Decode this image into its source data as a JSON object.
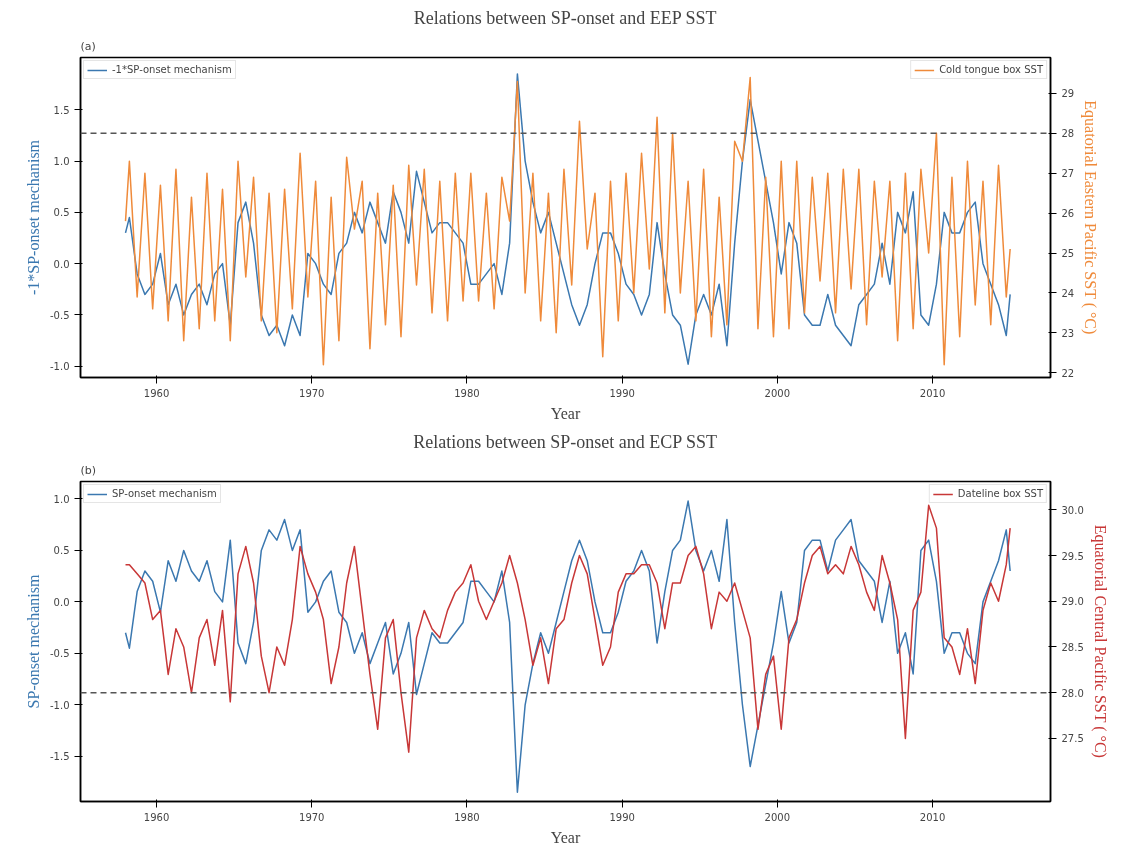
{
  "chart_data": [
    {
      "type": "line",
      "title": "Relations between SP-onset and EEP SST",
      "xlabel": "Year",
      "ylabel": "-1*SP-onset mechanism",
      "y2label": "Equatorial Eastern Pacific SST ( °C)",
      "annotations": [
        "(a)"
      ],
      "grid": false,
      "x": [
        1958.0,
        1958.25,
        1958.75,
        1959.25,
        1959.75,
        1960.25,
        1960.75,
        1961.25,
        1961.75,
        1962.25,
        1962.75,
        1963.25,
        1963.75,
        1964.25,
        1964.75,
        1965.25,
        1965.75,
        1966.25,
        1966.75,
        1967.25,
        1967.75,
        1968.25,
        1968.75,
        1969.25,
        1969.75,
        1970.25,
        1970.75,
        1971.25,
        1971.75,
        1972.25,
        1972.75,
        1973.25,
        1973.75,
        1974.25,
        1974.75,
        1975.25,
        1975.75,
        1976.25,
        1976.75,
        1977.25,
        1977.75,
        1978.25,
        1978.75,
        1979.25,
        1979.75,
        1980.25,
        1980.75,
        1981.25,
        1981.75,
        1982.25,
        1982.75,
        1983.25,
        1983.75,
        1984.25,
        1984.75,
        1985.25,
        1985.75,
        1986.25,
        1986.75,
        1987.25,
        1987.75,
        1988.25,
        1988.75,
        1989.25,
        1989.75,
        1990.25,
        1990.75,
        1991.25,
        1991.75,
        1992.25,
        1992.75,
        1993.25,
        1993.75,
        1994.25,
        1994.75,
        1995.25,
        1995.75,
        1996.25,
        1996.75,
        1997.25,
        1997.75,
        1998.25,
        1998.75,
        1999.25,
        1999.75,
        2000.25,
        2000.75,
        2001.25,
        2001.75,
        2002.25,
        2002.75,
        2003.25,
        2003.75,
        2004.25,
        2004.75,
        2005.25,
        2005.75,
        2006.25,
        2006.75,
        2007.25,
        2007.75,
        2008.25,
        2008.75,
        2009.25,
        2009.75,
        2010.25,
        2010.75,
        2011.25,
        2011.75,
        2012.25,
        2012.75,
        2013.25,
        2013.75,
        2014.25,
        2014.75,
        2015.0
      ],
      "xlim": [
        1955.1,
        2017.6
      ],
      "xticks": [
        1960,
        1970,
        1980,
        1990,
        2000,
        2010
      ],
      "ylim": [
        -1.11,
        2.01
      ],
      "yticks": [
        {
          "value": -1,
          "label": "-1.0"
        },
        -0.5,
        {
          "value": 0,
          "label": "0.0"
        },
        0.5,
        {
          "value": 1,
          "label": "1.0"
        },
        1.5
      ],
      "legend": "top",
      "y2lim": [
        21.88,
        29.9
      ],
      "y2ticks": [
        22,
        23,
        24,
        25,
        26,
        27,
        28,
        29
      ],
      "ref_lines": [
        {
          "axis": "y2",
          "value": 28,
          "color": "#555555",
          "line_style": "dashed"
        }
      ],
      "series": [
        {
          "name": "-1*SP-onset mechanism",
          "color": "#3b78b0",
          "values": [
            0.3,
            0.45,
            -0.1,
            -0.3,
            -0.2,
            0.1,
            -0.4,
            -0.2,
            -0.5,
            -0.3,
            -0.2,
            -0.4,
            -0.1,
            0.0,
            -0.6,
            0.4,
            0.6,
            0.2,
            -0.5,
            -0.7,
            -0.6,
            -0.8,
            -0.5,
            -0.7,
            0.1,
            0.0,
            -0.2,
            -0.3,
            0.1,
            0.2,
            0.5,
            0.3,
            0.6,
            0.4,
            0.2,
            0.7,
            0.5,
            0.2,
            0.9,
            0.6,
            0.3,
            0.4,
            0.4,
            0.3,
            0.2,
            -0.2,
            -0.2,
            -0.1,
            0.0,
            -0.3,
            0.2,
            1.85,
            1.0,
            0.6,
            0.3,
            0.5,
            0.2,
            -0.1,
            -0.4,
            -0.6,
            -0.4,
            0.0,
            0.3,
            0.3,
            0.1,
            -0.2,
            -0.3,
            -0.5,
            -0.3,
            0.4,
            -0.1,
            -0.5,
            -0.6,
            -0.98,
            -0.5,
            -0.3,
            -0.5,
            -0.2,
            -0.8,
            0.2,
            1.0,
            1.6,
            1.2,
            0.8,
            0.4,
            -0.1,
            0.4,
            0.2,
            -0.5,
            -0.6,
            -0.6,
            -0.3,
            -0.6,
            -0.7,
            -0.8,
            -0.4,
            -0.3,
            -0.2,
            0.2,
            -0.2,
            0.5,
            0.3,
            0.7,
            -0.5,
            -0.6,
            -0.2,
            0.5,
            0.3,
            0.3,
            0.5,
            0.6,
            0.0,
            -0.2,
            -0.4,
            -0.7,
            -0.3
          ]
        },
        {
          "name": "Cold tongue box SST",
          "color": "#ef8a3a",
          "axis": "y2",
          "values": [
            25.8,
            27.3,
            23.9,
            27.0,
            23.6,
            26.7,
            23.3,
            27.1,
            22.8,
            26.4,
            23.1,
            27.0,
            23.3,
            26.6,
            22.8,
            27.3,
            24.4,
            26.9,
            23.3,
            26.5,
            23.0,
            26.6,
            23.6,
            27.5,
            23.9,
            26.8,
            22.2,
            26.4,
            22.8,
            27.4,
            25.6,
            26.8,
            22.6,
            26.5,
            23.2,
            26.7,
            22.9,
            27.2,
            24.2,
            27.1,
            23.5,
            26.8,
            23.3,
            27.0,
            23.8,
            27.0,
            23.8,
            26.5,
            23.6,
            26.9,
            25.8,
            29.3,
            24.0,
            27.0,
            23.3,
            26.5,
            23.0,
            27.1,
            24.2,
            28.3,
            25.1,
            26.5,
            22.4,
            26.8,
            23.3,
            27.0,
            24.0,
            27.5,
            24.6,
            28.4,
            23.5,
            28.0,
            24.0,
            26.8,
            23.3,
            27.1,
            22.9,
            26.4,
            23.2,
            27.8,
            27.3,
            29.4,
            23.1,
            26.9,
            22.9,
            27.3,
            23.1,
            27.3,
            23.5,
            26.9,
            24.3,
            27.0,
            23.5,
            27.1,
            24.1,
            27.1,
            23.2,
            26.8,
            24.4,
            26.8,
            22.8,
            27.0,
            23.1,
            27.1,
            25.0,
            28.0,
            22.2,
            26.9,
            22.9,
            27.3,
            23.7,
            26.8,
            23.2,
            27.2,
            23.9,
            25.1
          ]
        }
      ]
    },
    {
      "type": "line",
      "title": "Relations between SP-onset and ECP SST",
      "xlabel": "Year",
      "ylabel": "SP-onset mechanism",
      "y2label": "Equatorial Central Pacific SST ( °C)",
      "annotations": [
        "(b)"
      ],
      "grid": false,
      "x": [
        1958.0,
        1958.25,
        1958.75,
        1959.25,
        1959.75,
        1960.25,
        1960.75,
        1961.25,
        1961.75,
        1962.25,
        1962.75,
        1963.25,
        1963.75,
        1964.25,
        1964.75,
        1965.25,
        1965.75,
        1966.25,
        1966.75,
        1967.25,
        1967.75,
        1968.25,
        1968.75,
        1969.25,
        1969.75,
        1970.25,
        1970.75,
        1971.25,
        1971.75,
        1972.25,
        1972.75,
        1973.25,
        1973.75,
        1974.25,
        1974.75,
        1975.25,
        1975.75,
        1976.25,
        1976.75,
        1977.25,
        1977.75,
        1978.25,
        1978.75,
        1979.25,
        1979.75,
        1980.25,
        1980.75,
        1981.25,
        1981.75,
        1982.25,
        1982.75,
        1983.25,
        1983.75,
        1984.25,
        1984.75,
        1985.25,
        1985.75,
        1986.25,
        1986.75,
        1987.25,
        1987.75,
        1988.25,
        1988.75,
        1989.25,
        1989.75,
        1990.25,
        1990.75,
        1991.25,
        1991.75,
        1992.25,
        1992.75,
        1993.25,
        1993.75,
        1994.25,
        1994.75,
        1995.25,
        1995.75,
        1996.25,
        1996.75,
        1997.25,
        1997.75,
        1998.25,
        1998.75,
        1999.25,
        1999.75,
        2000.25,
        2000.75,
        2001.25,
        2001.75,
        2002.25,
        2002.75,
        2003.25,
        2003.75,
        2004.25,
        2004.75,
        2005.25,
        2005.75,
        2006.25,
        2006.75,
        2007.25,
        2007.75,
        2008.25,
        2008.75,
        2009.25,
        2009.75,
        2010.25,
        2010.75,
        2011.25,
        2011.75,
        2012.25,
        2012.75,
        2013.25,
        2013.75,
        2014.25,
        2014.75,
        2015.0
      ],
      "xlim": [
        1955.1,
        2017.6
      ],
      "xticks": [
        1960,
        1970,
        1980,
        1990,
        2000,
        2010
      ],
      "ylim": [
        -1.94,
        1.17
      ],
      "yticks": [
        -1.5,
        {
          "value": -1,
          "label": "-1.0"
        },
        -0.5,
        {
          "value": 0,
          "label": "0.0"
        },
        0.5,
        {
          "value": 1,
          "label": "1.0"
        }
      ],
      "legend": "top",
      "y2lim": [
        26.81,
        30.31
      ],
      "y2ticks": [
        27.5,
        {
          "value": 28,
          "label": "28.0"
        },
        28.5,
        {
          "value": 29,
          "label": "29.0"
        },
        29.5,
        {
          "value": 30,
          "label": "30.0"
        }
      ],
      "ref_lines": [
        {
          "axis": "y2",
          "value": 28.0,
          "color": "#555555",
          "line_style": "dashed"
        }
      ],
      "series": [
        {
          "name": "SP-onset mechanism",
          "color": "#3b78b0",
          "values": [
            -0.3,
            -0.45,
            0.1,
            0.3,
            0.2,
            -0.1,
            0.4,
            0.2,
            0.5,
            0.3,
            0.2,
            0.4,
            0.1,
            0.0,
            0.6,
            -0.4,
            -0.6,
            -0.2,
            0.5,
            0.7,
            0.6,
            0.8,
            0.5,
            0.7,
            -0.1,
            0.0,
            0.2,
            0.3,
            -0.1,
            -0.2,
            -0.5,
            -0.3,
            -0.6,
            -0.4,
            -0.2,
            -0.7,
            -0.5,
            -0.2,
            -0.9,
            -0.6,
            -0.3,
            -0.4,
            -0.4,
            -0.3,
            -0.2,
            0.2,
            0.2,
            0.1,
            0.0,
            0.3,
            -0.2,
            -1.85,
            -1.0,
            -0.6,
            -0.3,
            -0.5,
            -0.2,
            0.1,
            0.4,
            0.6,
            0.4,
            0.0,
            -0.3,
            -0.3,
            -0.1,
            0.2,
            0.3,
            0.5,
            0.3,
            -0.4,
            0.1,
            0.5,
            0.6,
            0.98,
            0.5,
            0.3,
            0.5,
            0.2,
            0.8,
            -0.2,
            -1.0,
            -1.6,
            -1.2,
            -0.8,
            -0.4,
            0.1,
            -0.4,
            -0.2,
            0.5,
            0.6,
            0.6,
            0.3,
            0.6,
            0.7,
            0.8,
            0.4,
            0.3,
            0.2,
            -0.2,
            0.2,
            -0.5,
            -0.3,
            -0.7,
            0.5,
            0.6,
            0.2,
            -0.5,
            -0.3,
            -0.3,
            -0.5,
            -0.6,
            0.0,
            0.2,
            0.4,
            0.7,
            0.3
          ]
        },
        {
          "name": "Dateline box SST",
          "color": "#c83737",
          "axis": "y2",
          "values": [
            29.4,
            29.4,
            29.3,
            29.2,
            28.8,
            28.9,
            28.2,
            28.7,
            28.5,
            28.0,
            28.6,
            28.8,
            28.3,
            28.9,
            27.9,
            29.3,
            29.6,
            29.2,
            28.4,
            28.0,
            28.5,
            28.3,
            28.8,
            29.6,
            29.3,
            29.1,
            28.8,
            28.1,
            28.5,
            29.2,
            29.6,
            28.9,
            28.2,
            27.6,
            28.6,
            28.8,
            28.0,
            27.35,
            28.6,
            28.9,
            28.7,
            28.6,
            28.9,
            29.1,
            29.2,
            29.4,
            29.0,
            28.8,
            29.0,
            29.2,
            29.5,
            29.2,
            28.8,
            28.3,
            28.6,
            28.1,
            28.7,
            28.8,
            29.2,
            29.5,
            29.3,
            28.8,
            28.3,
            28.5,
            29.1,
            29.3,
            29.3,
            29.4,
            29.4,
            29.2,
            28.7,
            29.2,
            29.2,
            29.5,
            29.6,
            29.3,
            28.7,
            29.1,
            29.0,
            29.2,
            28.9,
            28.6,
            27.6,
            28.2,
            28.4,
            27.6,
            28.6,
            28.8,
            29.2,
            29.5,
            29.6,
            29.3,
            29.4,
            29.3,
            29.6,
            29.4,
            29.1,
            28.9,
            29.5,
            29.2,
            28.8,
            27.5,
            28.9,
            29.1,
            30.05,
            29.8,
            28.6,
            28.5,
            28.2,
            28.7,
            28.1,
            28.9,
            29.2,
            29.0,
            29.4,
            29.8
          ]
        }
      ]
    }
  ]
}
